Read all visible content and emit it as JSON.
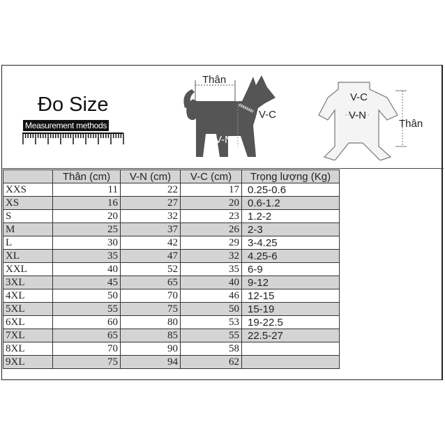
{
  "header": {
    "title": "Đo Size",
    "subtitle": "Measurement methods",
    "dog_labels": {
      "than": "Thân",
      "vc": "V-C",
      "vn": "V-N"
    },
    "shirt_labels": {
      "vc": "V-C",
      "vn": "V-N",
      "than": "Thân"
    }
  },
  "table": {
    "columns": [
      "",
      "Thân (cm)",
      "V-N (cm)",
      "V-C (cm)",
      "Trọng lượng (Kg)"
    ],
    "rows": [
      [
        "XXS",
        "11",
        "22",
        "17",
        "0.25-0.6"
      ],
      [
        "XS",
        "16",
        "27",
        "20",
        "0.6-1.2"
      ],
      [
        "S",
        "20",
        "32",
        "23",
        "1.2-2"
      ],
      [
        "M",
        "25",
        "37",
        "26",
        "2-3"
      ],
      [
        "L",
        "30",
        "42",
        "29",
        "3-4.25"
      ],
      [
        "XL",
        "35",
        "47",
        "32",
        "4.25-6"
      ],
      [
        "XXL",
        "40",
        "52",
        "35",
        "6-9"
      ],
      [
        "3XL",
        "45",
        "65",
        "40",
        "9-12"
      ],
      [
        "4XL",
        "50",
        "70",
        "46",
        "12-15"
      ],
      [
        "5XL",
        "55",
        "75",
        "50",
        "15-19"
      ],
      [
        "6XL",
        "60",
        "80",
        "53",
        "19-22.5"
      ],
      [
        "7XL",
        "65",
        "85",
        "55",
        "22.5-27"
      ],
      [
        "8XL",
        "70",
        "90",
        "58",
        ""
      ],
      [
        "9XL",
        "75",
        "94",
        "62",
        ""
      ]
    ]
  }
}
